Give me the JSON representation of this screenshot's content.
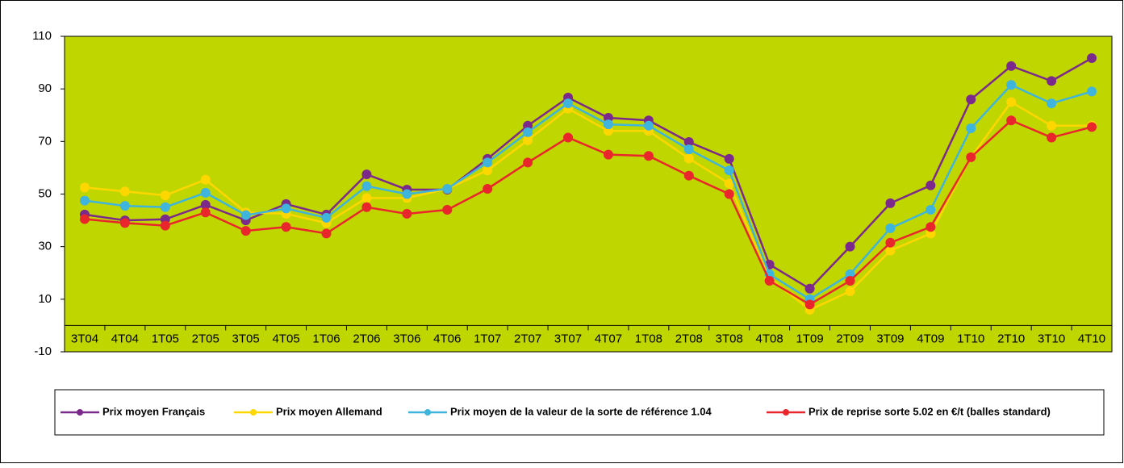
{
  "chart_data": {
    "type": "line",
    "categories": [
      "3T04",
      "4T04",
      "1T05",
      "2T05",
      "3T05",
      "4T05",
      "1T06",
      "2T06",
      "3T06",
      "4T06",
      "1T07",
      "2T07",
      "3T07",
      "4T07",
      "1T08",
      "2T08",
      "3T08",
      "4T08",
      "1T09",
      "2T09",
      "3T09",
      "4T09",
      "1T10",
      "2T10",
      "3T10",
      "4T10"
    ],
    "series": [
      {
        "name": "Prix moyen Français",
        "color": "#7b2a8c",
        "values": [
          42.2,
          40,
          40.4,
          45.9,
          40,
          46.2,
          42.2,
          57.5,
          51.7,
          51.7,
          63.4,
          76,
          86.7,
          79,
          78,
          69.8,
          63.4,
          23.2,
          14,
          30,
          46.5,
          53.3,
          86,
          98.7,
          93,
          101.7
        ]
      },
      {
        "name": "Prix moyen Allemand",
        "color": "#ffd700",
        "values": [
          52.5,
          51,
          49.5,
          55.5,
          43,
          42.5,
          39,
          48.5,
          48.5,
          52,
          59,
          70.5,
          82.5,
          74,
          74,
          63.5,
          54,
          18,
          6,
          13,
          28.5,
          35,
          64,
          85,
          76,
          76
        ]
      },
      {
        "name": "Prix moyen de la  valeur de la sorte de référence 1.04",
        "color": "#3fb4dc",
        "values": [
          47.5,
          45.5,
          45,
          50.5,
          42,
          44.5,
          41,
          53,
          50,
          52,
          62,
          73.5,
          84.5,
          76.5,
          76,
          67,
          59,
          19.5,
          10,
          19.5,
          37,
          44,
          75,
          91.5,
          84.5,
          89
        ]
      },
      {
        "name": "Prix de reprise sorte 5.02 en €/t (balles standard)",
        "color": "#e8262b",
        "values": [
          40.5,
          39,
          38,
          43,
          36,
          37.5,
          35,
          45,
          42.5,
          44,
          52,
          62,
          71.5,
          65,
          64.5,
          57,
          50,
          17,
          8,
          17,
          31.5,
          37.5,
          64,
          78,
          71.5,
          75.5
        ]
      }
    ],
    "ylim": [
      -10,
      110
    ],
    "yticks": [
      -10,
      10,
      30,
      50,
      70,
      90,
      110
    ],
    "plot_color": "#bfd600"
  }
}
